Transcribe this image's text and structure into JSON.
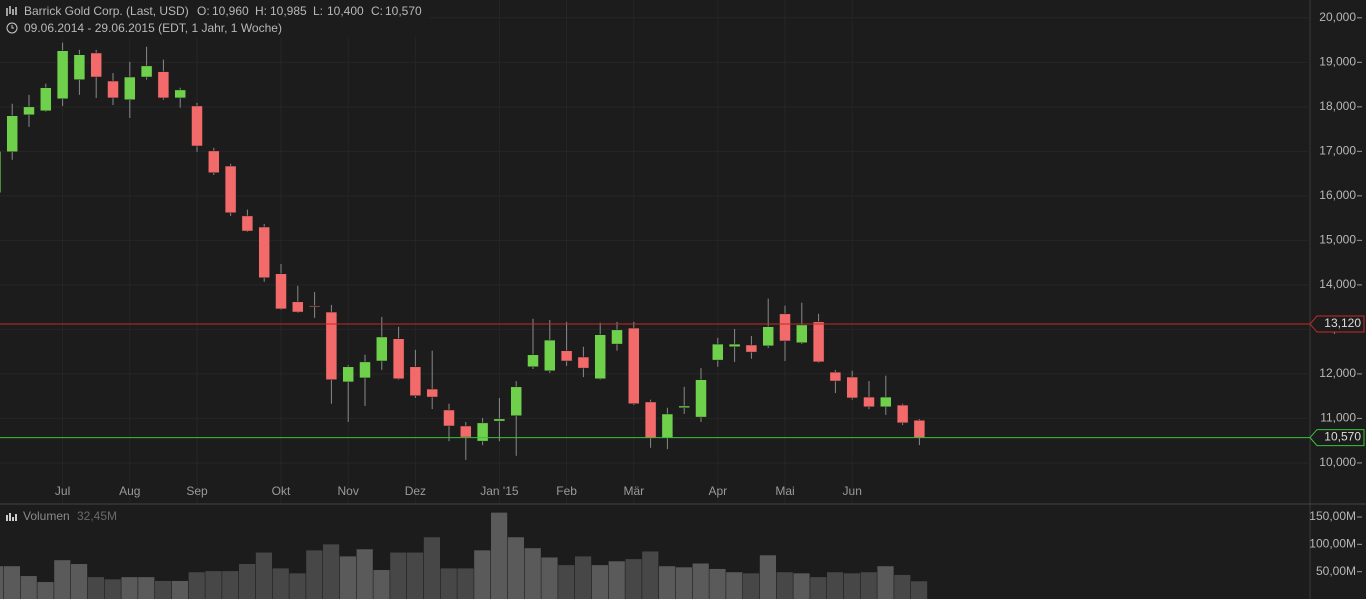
{
  "chart_data": [
    {
      "type": "candlestick",
      "title": "Barrick Gold Corp. (Last, USD)",
      "ohlc_labels": [
        "O:",
        "H:",
        "L:",
        "C:"
      ],
      "ohlc_values": [
        "10,960",
        "10,985",
        "10,400",
        "10,570"
      ],
      "subtitle": "09.06.2014 - 29.06.2015 (EDT, 1 Jahr, 1 Woche)",
      "categories": [
        null,
        null,
        null,
        null,
        "Jul",
        null,
        null,
        null,
        "Aug",
        null,
        null,
        null,
        "Sep",
        null,
        null,
        null,
        null,
        "Okt",
        null,
        null,
        null,
        "Nov",
        null,
        null,
        null,
        "Dez",
        null,
        null,
        null,
        null,
        "Jan '15",
        null,
        null,
        null,
        "Feb",
        null,
        null,
        null,
        "Mär",
        null,
        null,
        null,
        null,
        "Apr",
        null,
        null,
        null,
        "Mai",
        null,
        null,
        null,
        "Jun",
        null,
        null,
        null,
        null
      ],
      "open": [
        16070,
        16990,
        17820,
        17910,
        18180,
        18610,
        19210,
        18580,
        18160,
        18670,
        18790,
        18200,
        18020,
        17010,
        16670,
        15550,
        15300,
        14250,
        13620,
        13530,
        13390,
        11820,
        11910,
        12290,
        12790,
        12160,
        11660,
        11190,
        10830,
        10490,
        10940,
        11060,
        12160,
        12070,
        12520,
        12380,
        11890,
        12670,
        13030,
        11370,
        10560,
        11240,
        11030,
        12310,
        12610,
        12650,
        12630,
        13350,
        12700,
        13170,
        12040,
        11930,
        11480,
        11260,
        11300,
        10960
      ],
      "high": [
        17200,
        18070,
        18270,
        18520,
        19440,
        19280,
        19280,
        18760,
        19010,
        19350,
        19060,
        18430,
        18090,
        17080,
        16720,
        15690,
        15370,
        14470,
        13980,
        13840,
        13550,
        12200,
        12430,
        13280,
        13060,
        12540,
        12520,
        11330,
        10920,
        11010,
        11460,
        11840,
        13240,
        13210,
        13170,
        12610,
        13150,
        13170,
        13170,
        11420,
        11240,
        11710,
        12130,
        12810,
        13010,
        12850,
        13690,
        13530,
        13600,
        13350,
        12090,
        12070,
        11840,
        11960,
        11330,
        10985
      ],
      "low": [
        16000,
        16810,
        17550,
        17890,
        18020,
        18270,
        18200,
        18040,
        17750,
        18610,
        18160,
        17980,
        16990,
        16470,
        15550,
        15190,
        14070,
        13440,
        13370,
        13260,
        11330,
        10920,
        11280,
        12090,
        11870,
        11460,
        11210,
        10490,
        10070,
        10400,
        10490,
        10160,
        12110,
        12020,
        12180,
        11930,
        11870,
        12520,
        11300,
        10340,
        10310,
        11100,
        10920,
        12160,
        12270,
        12340,
        12580,
        12290,
        12670,
        12250,
        11570,
        11420,
        11210,
        11080,
        10850,
        10400
      ],
      "close": [
        17000,
        17800,
        18000,
        18430,
        19260,
        19170,
        18670,
        18200,
        18670,
        18920,
        18200,
        18380,
        17120,
        16520,
        15620,
        15210,
        14160,
        13460,
        13390,
        13510,
        11870,
        12160,
        12270,
        12830,
        11890,
        11510,
        11480,
        10830,
        10580,
        10900,
        10990,
        11710,
        12430,
        12760,
        12290,
        12130,
        12880,
        12990,
        11330,
        10560,
        11100,
        11280,
        11870,
        12670,
        12670,
        12490,
        13060,
        12740,
        13100,
        12270,
        11840,
        11460,
        11260,
        11480,
        10900,
        10570
      ],
      "up_color": "#6fd14b",
      "down_color": "#f26a6a",
      "wick_color": "#8a8a8a",
      "ylim": [
        9100,
        20400
      ],
      "yticks": [
        {
          "value": 10000,
          "label": "10,000"
        },
        {
          "value": 11000,
          "label": "11,000"
        },
        {
          "value": 12000,
          "label": "12,000"
        },
        {
          "value": 13000,
          "label": "13,000"
        },
        {
          "value": 14000,
          "label": "14,000"
        },
        {
          "value": 15000,
          "label": "15,000"
        },
        {
          "value": 16000,
          "label": "16,000"
        },
        {
          "value": 17000,
          "label": "17,000"
        },
        {
          "value": 18000,
          "label": "18,000"
        },
        {
          "value": 19000,
          "label": "19,000"
        },
        {
          "value": 20000,
          "label": "20,000"
        }
      ],
      "lines": [
        {
          "value": 13120,
          "label": "13,120",
          "color": "#c62828"
        },
        {
          "value": 10570,
          "label": "10,570",
          "color": "#3cc03c"
        }
      ],
      "grid": true
    },
    {
      "type": "bar",
      "title": "Volumen",
      "subtitle": "32,45M",
      "values": [
        60,
        60,
        42,
        31,
        71,
        64,
        40,
        36,
        40,
        40,
        33,
        33,
        49,
        51,
        51,
        64,
        85,
        56,
        47,
        89,
        100,
        78,
        91,
        53,
        85,
        85,
        113,
        56,
        56,
        89,
        158,
        113,
        93,
        76,
        62,
        78,
        62,
        69,
        73,
        87,
        60,
        58,
        65,
        55,
        49,
        47,
        80,
        49,
        47,
        40,
        49,
        47,
        49,
        60,
        44,
        32.45
      ],
      "up_color": "#5a5a5a",
      "down_color": "#474747",
      "ylim": [
        0,
        172
      ],
      "yticks": [
        {
          "value": 50,
          "label": "50,00M"
        },
        {
          "value": 100,
          "label": "100,00M"
        },
        {
          "value": 150,
          "label": "150,00M"
        }
      ]
    }
  ]
}
